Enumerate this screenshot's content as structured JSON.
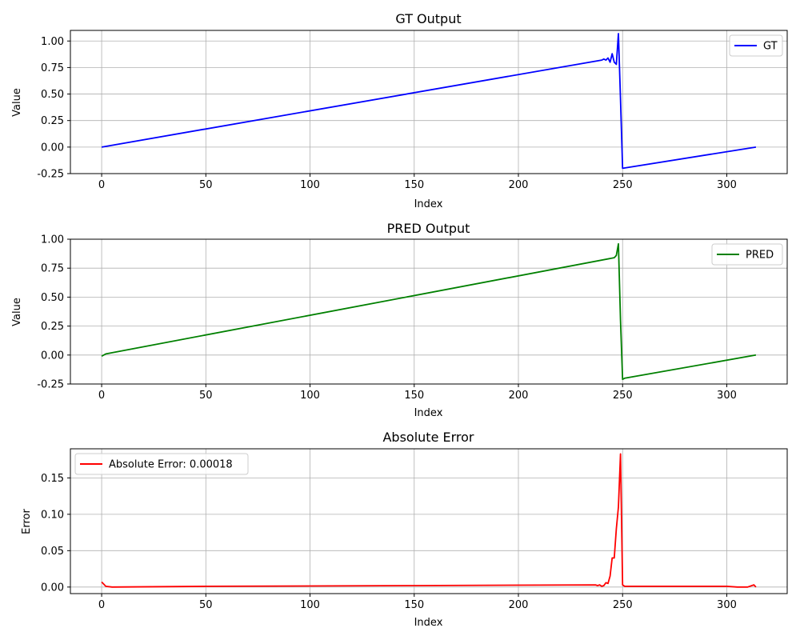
{
  "chart_data": [
    {
      "type": "line",
      "title": "GT Output",
      "xlabel": "Index",
      "ylabel": "Value",
      "xlim": [
        -15,
        329
      ],
      "ylim": [
        -0.25,
        1.1
      ],
      "xticks": [
        0,
        50,
        100,
        150,
        200,
        250,
        300
      ],
      "yticks": [
        -0.25,
        0.0,
        0.25,
        0.5,
        0.75,
        1.0
      ],
      "ytick_format": 2,
      "grid": true,
      "legend_position": "top-right",
      "series": [
        {
          "name": "GT",
          "color": "#0000ff",
          "x": [
            0,
            240,
            241,
            242,
            243,
            244,
            245,
            246,
            247,
            248,
            249,
            250,
            314
          ],
          "y": [
            0.0,
            0.82,
            0.83,
            0.82,
            0.84,
            0.8,
            0.88,
            0.8,
            0.78,
            1.07,
            0.45,
            -0.2,
            0.0
          ]
        }
      ]
    },
    {
      "type": "line",
      "title": "PRED Output",
      "xlabel": "Index",
      "ylabel": "Value",
      "xlim": [
        -15,
        329
      ],
      "ylim": [
        -0.25,
        1.0
      ],
      "xticks": [
        0,
        50,
        100,
        150,
        200,
        250,
        300
      ],
      "yticks": [
        -0.25,
        0.0,
        0.25,
        0.5,
        0.75,
        1.0
      ],
      "ytick_format": 2,
      "grid": true,
      "legend_position": "top-right",
      "series": [
        {
          "name": "PRED",
          "color": "#008000",
          "x": [
            0,
            2,
            246,
            247,
            248,
            249,
            250,
            251,
            314
          ],
          "y": [
            -0.01,
            0.01,
            0.84,
            0.86,
            0.96,
            0.3,
            -0.21,
            -0.2,
            0.0
          ]
        }
      ]
    },
    {
      "type": "line",
      "title": "Absolute Error",
      "xlabel": "Index",
      "ylabel": "Error",
      "xlim": [
        -15,
        329
      ],
      "ylim": [
        -0.009,
        0.19
      ],
      "xticks": [
        0,
        50,
        100,
        150,
        200,
        250,
        300
      ],
      "yticks": [
        0.0,
        0.05,
        0.1,
        0.15
      ],
      "ytick_format": 2,
      "grid": true,
      "legend_position": "top-left",
      "series": [
        {
          "name": "Absolute Error: 0.00018",
          "color": "#ff0000",
          "x": [
            0,
            2,
            5,
            50,
            150,
            237,
            238,
            239,
            240,
            241,
            242,
            243,
            244,
            245,
            246,
            247,
            248,
            249,
            250,
            251,
            300,
            305,
            310,
            313,
            314
          ],
          "y": [
            0.007,
            0.001,
            0.0,
            0.001,
            0.002,
            0.003,
            0.002,
            0.003,
            0.001,
            0.002,
            0.006,
            0.005,
            0.015,
            0.04,
            0.04,
            0.08,
            0.11,
            0.183,
            0.003,
            0.001,
            0.001,
            0.0,
            0.0,
            0.003,
            0.0
          ]
        }
      ]
    }
  ]
}
